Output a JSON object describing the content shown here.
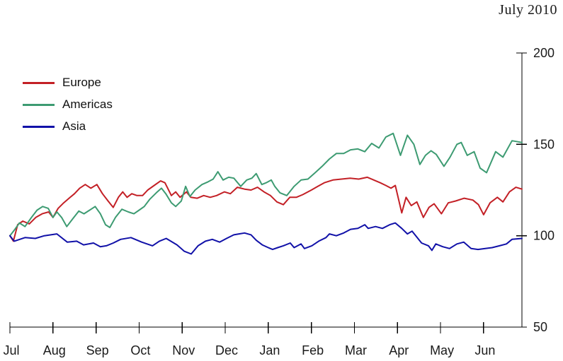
{
  "title": "July 2010",
  "legend": [
    {
      "label": "Europe",
      "color": "#c32026",
      "icon": "line-swatch"
    },
    {
      "label": "Americas",
      "color": "#3d9b72",
      "icon": "line-swatch"
    },
    {
      "label": "Asia",
      "color": "#1111a8",
      "icon": "line-swatch"
    }
  ],
  "chart_data": {
    "type": "line",
    "title": "July 2010",
    "x_unit": "months (Jul 2009 - Jun 2010)",
    "x_tick_labels": [
      "Jul",
      "Aug",
      "Sep",
      "Oct",
      "Nov",
      "Dec",
      "Jan",
      "Feb",
      "Mar",
      "Apr",
      "May",
      "Jun"
    ],
    "y_ticks": [
      50,
      100,
      150,
      200
    ],
    "ylim": [
      50,
      200
    ],
    "xlim": [
      0,
      11.89
    ],
    "grid": false,
    "legend_position": "top-left",
    "axis_side": {
      "y": "right",
      "x": "bottom"
    },
    "axis_color": "#000000",
    "series": [
      {
        "name": "Europe",
        "color": "#c32026",
        "points": [
          [
            0,
            100
          ],
          [
            0.08,
            97
          ],
          [
            0.18,
            106
          ],
          [
            0.3,
            108
          ],
          [
            0.45,
            106.5
          ],
          [
            0.6,
            110
          ],
          [
            0.75,
            112
          ],
          [
            0.9,
            113
          ],
          [
            1.0,
            110
          ],
          [
            1.12,
            115
          ],
          [
            1.25,
            118
          ],
          [
            1.4,
            121
          ],
          [
            1.5,
            123
          ],
          [
            1.62,
            126
          ],
          [
            1.75,
            128
          ],
          [
            1.88,
            126
          ],
          [
            2.02,
            128
          ],
          [
            2.15,
            123
          ],
          [
            2.28,
            119
          ],
          [
            2.4,
            115.5
          ],
          [
            2.52,
            121
          ],
          [
            2.62,
            124
          ],
          [
            2.72,
            121
          ],
          [
            2.83,
            123
          ],
          [
            2.95,
            122
          ],
          [
            3.08,
            122
          ],
          [
            3.2,
            125
          ],
          [
            3.35,
            127.5
          ],
          [
            3.5,
            130
          ],
          [
            3.6,
            129
          ],
          [
            3.75,
            122
          ],
          [
            3.85,
            124
          ],
          [
            3.95,
            121
          ],
          [
            4.1,
            124
          ],
          [
            4.2,
            121
          ],
          [
            4.35,
            120.5
          ],
          [
            4.5,
            122
          ],
          [
            4.65,
            121
          ],
          [
            4.8,
            122
          ],
          [
            4.98,
            124
          ],
          [
            5.12,
            123
          ],
          [
            5.28,
            126.5
          ],
          [
            5.45,
            125.5
          ],
          [
            5.6,
            125
          ],
          [
            5.75,
            126.5
          ],
          [
            5.9,
            124
          ],
          [
            6.05,
            122
          ],
          [
            6.2,
            118.5
          ],
          [
            6.35,
            117
          ],
          [
            6.5,
            121
          ],
          [
            6.65,
            121
          ],
          [
            6.8,
            122.5
          ],
          [
            7.0,
            125
          ],
          [
            7.15,
            127
          ],
          [
            7.3,
            129
          ],
          [
            7.5,
            130.5
          ],
          [
            7.7,
            131
          ],
          [
            7.9,
            131.5
          ],
          [
            8.1,
            131
          ],
          [
            8.3,
            132
          ],
          [
            8.45,
            130.5
          ],
          [
            8.6,
            129
          ],
          [
            8.73,
            127.5
          ],
          [
            8.85,
            126
          ],
          [
            8.95,
            127.5
          ],
          [
            9.1,
            112.5
          ],
          [
            9.2,
            121
          ],
          [
            9.32,
            116.5
          ],
          [
            9.45,
            118.5
          ],
          [
            9.6,
            110
          ],
          [
            9.73,
            115.5
          ],
          [
            9.85,
            117.5
          ],
          [
            10.02,
            112
          ],
          [
            10.18,
            118
          ],
          [
            10.35,
            119
          ],
          [
            10.55,
            120.5
          ],
          [
            10.75,
            119.5
          ],
          [
            10.88,
            117
          ],
          [
            11.0,
            111.5
          ],
          [
            11.15,
            118
          ],
          [
            11.32,
            121
          ],
          [
            11.45,
            118.5
          ],
          [
            11.6,
            124
          ],
          [
            11.75,
            126.5
          ],
          [
            11.89,
            125.5
          ]
        ]
      },
      {
        "name": "Americas",
        "color": "#3d9b72",
        "points": [
          [
            0,
            100
          ],
          [
            0.1,
            103
          ],
          [
            0.22,
            107
          ],
          [
            0.35,
            105
          ],
          [
            0.5,
            110
          ],
          [
            0.63,
            114
          ],
          [
            0.76,
            116
          ],
          [
            0.89,
            115
          ],
          [
            1.0,
            110
          ],
          [
            1.09,
            113
          ],
          [
            1.2,
            110
          ],
          [
            1.32,
            105
          ],
          [
            1.45,
            109
          ],
          [
            1.6,
            113.5
          ],
          [
            1.72,
            112
          ],
          [
            1.85,
            114
          ],
          [
            1.98,
            116
          ],
          [
            2.1,
            112
          ],
          [
            2.22,
            106
          ],
          [
            2.32,
            104.5
          ],
          [
            2.45,
            110
          ],
          [
            2.6,
            114.5
          ],
          [
            2.75,
            113
          ],
          [
            2.88,
            112
          ],
          [
            3.0,
            114
          ],
          [
            3.12,
            116
          ],
          [
            3.25,
            120
          ],
          [
            3.4,
            123.5
          ],
          [
            3.52,
            126
          ],
          [
            3.62,
            123
          ],
          [
            3.75,
            118
          ],
          [
            3.85,
            116
          ],
          [
            3.98,
            119
          ],
          [
            4.08,
            127
          ],
          [
            4.18,
            121.5
          ],
          [
            4.3,
            125
          ],
          [
            4.46,
            128
          ],
          [
            4.6,
            129.5
          ],
          [
            4.72,
            131
          ],
          [
            4.83,
            135
          ],
          [
            4.95,
            130.5
          ],
          [
            5.08,
            132
          ],
          [
            5.2,
            131.5
          ],
          [
            5.36,
            127
          ],
          [
            5.5,
            130.5
          ],
          [
            5.62,
            131.5
          ],
          [
            5.72,
            134
          ],
          [
            5.85,
            128
          ],
          [
            5.95,
            129
          ],
          [
            6.07,
            130.5
          ],
          [
            6.15,
            127
          ],
          [
            6.27,
            123.5
          ],
          [
            6.43,
            122
          ],
          [
            6.6,
            127
          ],
          [
            6.76,
            130.5
          ],
          [
            6.92,
            131
          ],
          [
            7.09,
            134.5
          ],
          [
            7.25,
            138
          ],
          [
            7.42,
            142
          ],
          [
            7.58,
            145
          ],
          [
            7.75,
            145
          ],
          [
            7.91,
            147
          ],
          [
            8.08,
            147.5
          ],
          [
            8.24,
            146
          ],
          [
            8.4,
            150.5
          ],
          [
            8.57,
            148
          ],
          [
            8.73,
            154
          ],
          [
            8.9,
            156
          ],
          [
            9.07,
            144
          ],
          [
            9.23,
            155
          ],
          [
            9.38,
            150
          ],
          [
            9.52,
            139
          ],
          [
            9.65,
            144
          ],
          [
            9.78,
            146.5
          ],
          [
            9.9,
            144.5
          ],
          [
            10.08,
            138
          ],
          [
            10.22,
            143
          ],
          [
            10.38,
            150
          ],
          [
            10.48,
            151
          ],
          [
            10.62,
            144
          ],
          [
            10.78,
            146
          ],
          [
            10.92,
            137
          ],
          [
            11.07,
            134.5
          ],
          [
            11.28,
            146
          ],
          [
            11.45,
            143
          ],
          [
            11.66,
            152
          ],
          [
            11.89,
            151
          ]
        ]
      },
      {
        "name": "Asia",
        "color": "#1111a8",
        "points": [
          [
            0,
            100
          ],
          [
            0.1,
            97
          ],
          [
            0.35,
            99
          ],
          [
            0.59,
            98.5
          ],
          [
            0.8,
            100
          ],
          [
            0.95,
            100.5
          ],
          [
            1.09,
            101
          ],
          [
            1.33,
            96.5
          ],
          [
            1.55,
            97
          ],
          [
            1.71,
            95
          ],
          [
            1.94,
            96
          ],
          [
            2.1,
            94
          ],
          [
            2.24,
            94.5
          ],
          [
            2.4,
            96
          ],
          [
            2.57,
            98
          ],
          [
            2.81,
            99
          ],
          [
            3.06,
            96.5
          ],
          [
            3.31,
            94.5
          ],
          [
            3.47,
            97
          ],
          [
            3.63,
            98.5
          ],
          [
            3.88,
            95
          ],
          [
            4.05,
            91.5
          ],
          [
            4.21,
            90
          ],
          [
            4.37,
            94.5
          ],
          [
            4.54,
            97
          ],
          [
            4.7,
            98
          ],
          [
            4.87,
            96.5
          ],
          [
            5.03,
            98.5
          ],
          [
            5.2,
            100.5
          ],
          [
            5.32,
            101
          ],
          [
            5.45,
            101.5
          ],
          [
            5.6,
            100.5
          ],
          [
            5.72,
            97.5
          ],
          [
            5.86,
            95
          ],
          [
            6.0,
            93.5
          ],
          [
            6.1,
            92.5
          ],
          [
            6.22,
            93.5
          ],
          [
            6.35,
            94.5
          ],
          [
            6.51,
            96
          ],
          [
            6.6,
            93.5
          ],
          [
            6.76,
            95.5
          ],
          [
            6.84,
            93
          ],
          [
            7.01,
            94.5
          ],
          [
            7.17,
            97
          ],
          [
            7.34,
            99
          ],
          [
            7.42,
            101
          ],
          [
            7.58,
            100
          ],
          [
            7.75,
            101.5
          ],
          [
            7.91,
            103.5
          ],
          [
            8.08,
            104
          ],
          [
            8.24,
            106
          ],
          [
            8.32,
            104
          ],
          [
            8.49,
            105
          ],
          [
            8.65,
            104
          ],
          [
            8.82,
            106
          ],
          [
            8.95,
            107
          ],
          [
            9.1,
            104
          ],
          [
            9.23,
            101
          ],
          [
            9.34,
            102.5
          ],
          [
            9.56,
            96
          ],
          [
            9.72,
            94.5
          ],
          [
            9.8,
            92
          ],
          [
            9.89,
            95.5
          ],
          [
            10.05,
            94
          ],
          [
            10.21,
            93
          ],
          [
            10.38,
            95.5
          ],
          [
            10.54,
            96.5
          ],
          [
            10.71,
            93
          ],
          [
            10.87,
            92.5
          ],
          [
            11.04,
            93
          ],
          [
            11.2,
            93.5
          ],
          [
            11.37,
            94.5
          ],
          [
            11.53,
            95.5
          ],
          [
            11.66,
            98
          ],
          [
            11.89,
            98.5
          ]
        ]
      }
    ]
  }
}
